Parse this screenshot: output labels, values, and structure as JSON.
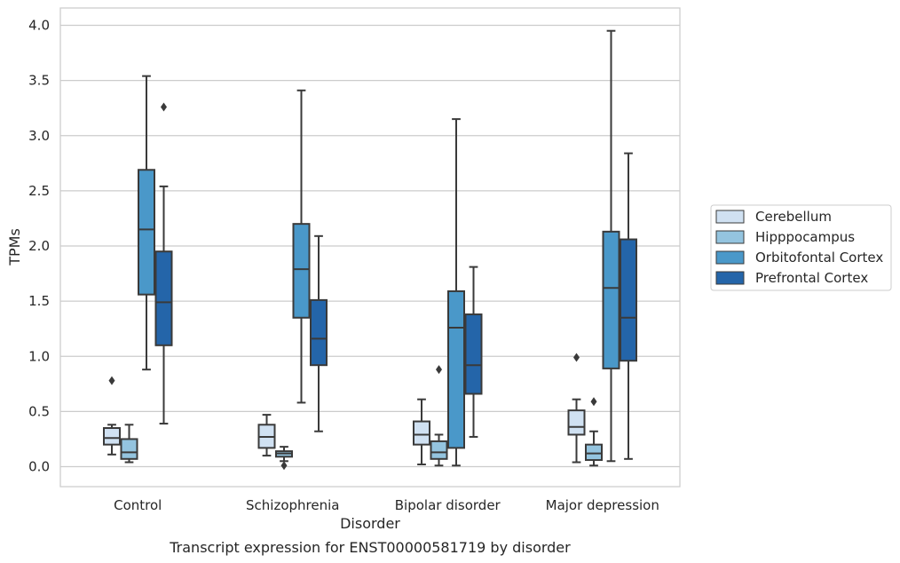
{
  "chart_data": {
    "type": "box",
    "caption": "Transcript expression for ENST00000581719 by disorder",
    "xlabel": "Disorder",
    "ylabel": "TPMs",
    "ylim": [
      -0.18,
      4.15
    ],
    "yticks": [
      0.0,
      0.5,
      1.0,
      1.5,
      2.0,
      2.5,
      3.0,
      3.5,
      4.0
    ],
    "ytick_labels": [
      "0.0",
      "0.5",
      "1.0",
      "1.5",
      "2.0",
      "2.5",
      "3.0",
      "3.5",
      "4.0"
    ],
    "categories": [
      "Control",
      "Schizophrenia",
      "Bipolar disorder",
      "Major depression"
    ],
    "grid": "horizontal",
    "legend_position": "right",
    "series": [
      {
        "name": "Cerebellum",
        "color": "#d0e1f2",
        "boxes": [
          {
            "whislo": 0.11,
            "q1": 0.2,
            "med": 0.26,
            "q3": 0.35,
            "whishi": 0.38,
            "fliers": [
              0.78
            ]
          },
          {
            "whislo": 0.1,
            "q1": 0.17,
            "med": 0.27,
            "q3": 0.38,
            "whishi": 0.47,
            "fliers": []
          },
          {
            "whislo": 0.02,
            "q1": 0.2,
            "med": 0.29,
            "q3": 0.41,
            "whishi": 0.61,
            "fliers": []
          },
          {
            "whislo": 0.04,
            "q1": 0.29,
            "med": 0.36,
            "q3": 0.51,
            "whishi": 0.61,
            "fliers": [
              0.99
            ]
          }
        ]
      },
      {
        "name": "Hipppocampus",
        "color": "#94c4df",
        "boxes": [
          {
            "whislo": 0.04,
            "q1": 0.07,
            "med": 0.13,
            "q3": 0.25,
            "whishi": 0.38,
            "fliers": []
          },
          {
            "whislo": 0.05,
            "q1": 0.09,
            "med": 0.12,
            "q3": 0.14,
            "whishi": 0.18,
            "fliers": [
              0.01
            ]
          },
          {
            "whislo": 0.01,
            "q1": 0.07,
            "med": 0.13,
            "q3": 0.23,
            "whishi": 0.29,
            "fliers": [
              0.88
            ]
          },
          {
            "whislo": 0.01,
            "q1": 0.06,
            "med": 0.12,
            "q3": 0.2,
            "whishi": 0.32,
            "fliers": [
              0.59
            ]
          }
        ]
      },
      {
        "name": "Orbitofontal Cortex",
        "color": "#4a98c9",
        "boxes": [
          {
            "whislo": 0.88,
            "q1": 1.56,
            "med": 2.15,
            "q3": 2.69,
            "whishi": 3.54,
            "fliers": []
          },
          {
            "whislo": 0.58,
            "q1": 1.35,
            "med": 1.79,
            "q3": 2.2,
            "whishi": 3.41,
            "fliers": []
          },
          {
            "whislo": 0.01,
            "q1": 0.17,
            "med": 1.26,
            "q3": 1.59,
            "whishi": 3.15,
            "fliers": []
          },
          {
            "whislo": 0.05,
            "q1": 0.89,
            "med": 1.62,
            "q3": 2.13,
            "whishi": 3.95,
            "fliers": []
          }
        ]
      },
      {
        "name": "Prefrontal Cortex",
        "color": "#2465a9",
        "boxes": [
          {
            "whislo": 0.39,
            "q1": 1.1,
            "med": 1.49,
            "q3": 1.95,
            "whishi": 2.54,
            "fliers": [
              3.26
            ]
          },
          {
            "whislo": 0.32,
            "q1": 0.92,
            "med": 1.16,
            "q3": 1.51,
            "whishi": 2.09,
            "fliers": []
          },
          {
            "whislo": 0.27,
            "q1": 0.66,
            "med": 0.92,
            "q3": 1.38,
            "whishi": 1.81,
            "fliers": []
          },
          {
            "whislo": 0.07,
            "q1": 0.96,
            "med": 1.35,
            "q3": 2.06,
            "whishi": 2.84,
            "fliers": []
          }
        ]
      }
    ]
  }
}
